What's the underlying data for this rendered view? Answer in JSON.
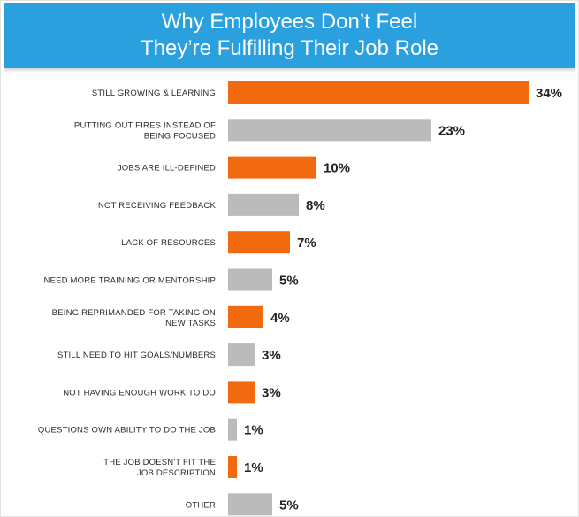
{
  "title_lines": [
    "Why Employees Don’t Feel",
    "They’re Fulfilling Their Job Role"
  ],
  "colors": {
    "header": "#2aa0de",
    "highlight": "#f26a10",
    "neutral": "#bbbbbb"
  },
  "chart_data": {
    "type": "bar",
    "orientation": "horizontal",
    "title": "Why Employees Don’t Feel They’re Fulfilling Their Job Role",
    "xlabel": "",
    "ylabel": "",
    "unit": "%",
    "xlim": [
      0,
      34
    ],
    "grid": false,
    "legend": "none",
    "categories": [
      "STILL GROWING & LEARNING",
      "PUTTING OUT FIRES INSTEAD OF BEING FOCUSED",
      "JOBS ARE ILL-DEFINED",
      "NOT RECEIVING FEEDBACK",
      "LACK OF RESOURCES",
      "NEED MORE TRAINING OR MENTORSHIP",
      "BEING REPRIMANDED FOR TAKING ON NEW TASKS",
      "STILL NEED TO HIT GOALS/NUMBERS",
      "NOT HAVING ENOUGH WORK TO DO",
      "QUESTIONS OWN ABILITY TO DO THE JOB",
      "THE JOB DOESN'T FIT THE JOB DESCRIPTION",
      "OTHER"
    ],
    "label_lines": [
      [
        "STILL GROWING & LEARNING"
      ],
      [
        "PUTTING OUT FIRES INSTEAD OF",
        "BEING FOCUSED"
      ],
      [
        "JOBS ARE ILL-DEFINED"
      ],
      [
        "NOT RECEIVING FEEDBACK"
      ],
      [
        "LACK OF RESOURCES"
      ],
      [
        "NEED MORE TRAINING OR MENTORSHIP"
      ],
      [
        "BEING REPRIMANDED FOR TAKING ON",
        "NEW TASKS"
      ],
      [
        "STILL NEED TO HIT GOALS/NUMBERS"
      ],
      [
        "NOT HAVING ENOUGH WORK TO DO"
      ],
      [
        "QUESTIONS OWN ABILITY TO DO THE JOB"
      ],
      [
        "THE JOB DOESN'T FIT THE",
        "JOB DESCRIPTION"
      ],
      [
        "OTHER"
      ]
    ],
    "values": [
      34,
      23,
      10,
      8,
      7,
      5,
      4,
      3,
      3,
      1,
      1,
      5
    ],
    "value_labels": [
      "34%",
      "23%",
      "10%",
      "8%",
      "7%",
      "5%",
      "4%",
      "3%",
      "3%",
      "1%",
      "1%",
      "5%"
    ],
    "bar_colors": [
      "highlight",
      "neutral",
      "highlight",
      "neutral",
      "highlight",
      "neutral",
      "highlight",
      "neutral",
      "highlight",
      "neutral",
      "highlight",
      "neutral"
    ]
  }
}
